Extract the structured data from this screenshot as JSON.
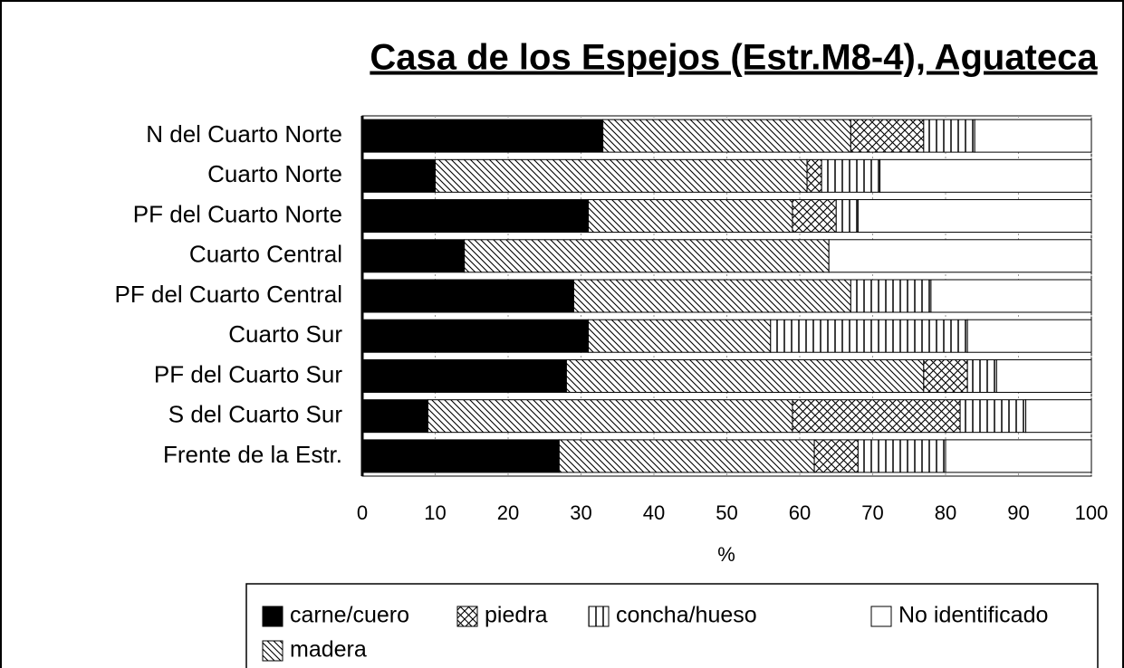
{
  "chart_data": {
    "type": "stacked_barh",
    "title": "Casa de los Espejos (Estr.M8-4), Aguateca",
    "xlabel": "%",
    "categories": [
      "N del Cuarto Norte",
      "Cuarto Norte",
      "PF del Cuarto Norte",
      "Cuarto Central",
      "PF del Cuarto Central",
      "Cuarto Sur",
      "PF del Cuarto Sur",
      "S del Cuarto Sur",
      "Frente de la Estr."
    ],
    "series": [
      {
        "name": "carne/cuero",
        "color": "#000000",
        "pattern": "solid",
        "values": [
          33,
          10,
          31,
          14,
          29,
          31,
          28,
          9,
          27
        ]
      },
      {
        "name": "madera",
        "color": "#ffffff",
        "pattern": "diagonal",
        "values": [
          34,
          51,
          28,
          50,
          38,
          25,
          49,
          50,
          35
        ]
      },
      {
        "name": "piedra",
        "color": "#ffffff",
        "pattern": "crosshatch",
        "values": [
          10,
          2,
          6,
          0,
          0,
          0,
          6,
          23,
          6
        ]
      },
      {
        "name": "concha/hueso",
        "color": "#ffffff",
        "pattern": "vertical",
        "values": [
          7,
          8,
          3,
          0,
          11,
          27,
          4,
          9,
          12
        ]
      },
      {
        "name": "No identificado",
        "color": "#ffffff",
        "pattern": "none",
        "values": [
          16,
          29,
          32,
          36,
          22,
          17,
          13,
          9,
          20
        ]
      }
    ],
    "xlim": [
      0,
      100
    ],
    "xticks": [
      0,
      10,
      20,
      30,
      40,
      50,
      60,
      70,
      80,
      90,
      100
    ],
    "grid": true
  }
}
